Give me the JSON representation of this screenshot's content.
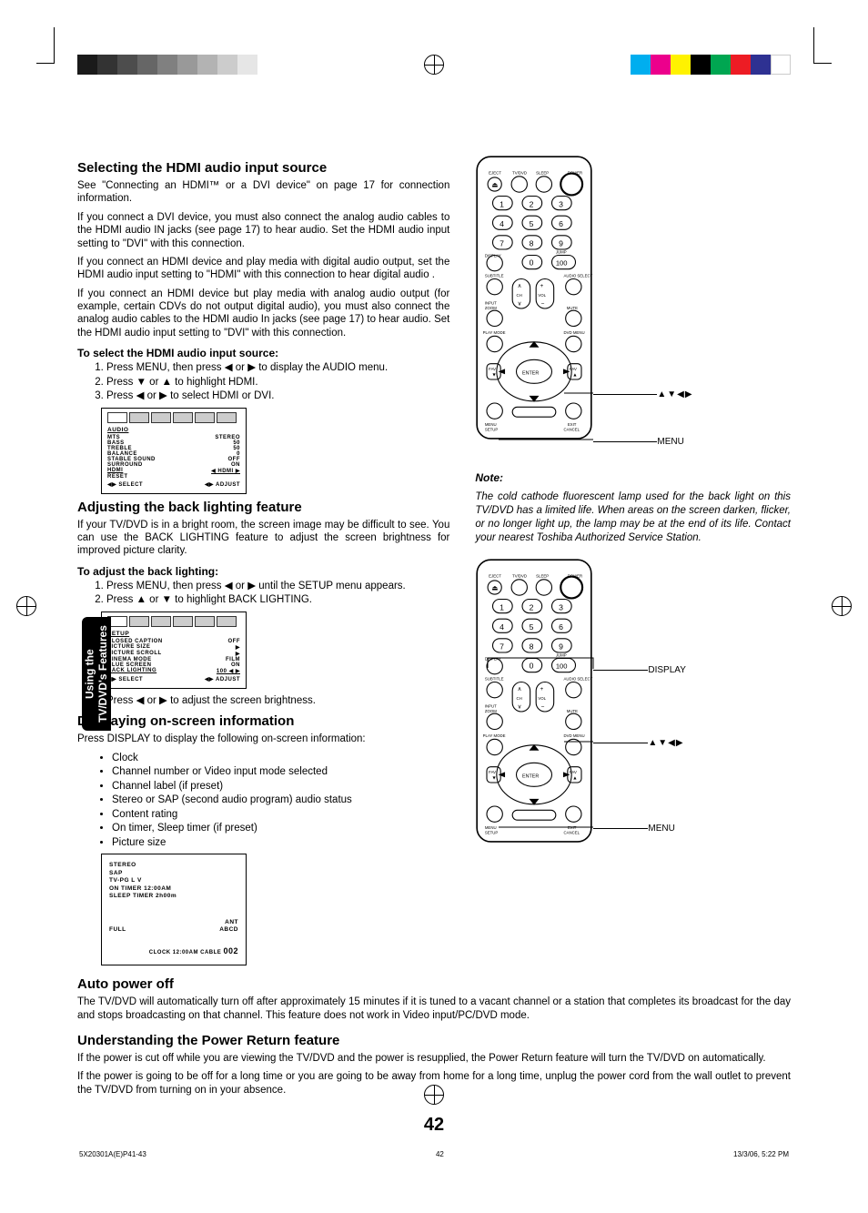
{
  "colorbars": {
    "left": [
      "#1a1a1a",
      "#333333",
      "#4d4d4d",
      "#666666",
      "#808080",
      "#999999",
      "#b3b3b3",
      "#cccccc",
      "#e6e6e6"
    ],
    "right": [
      "#00aeef",
      "#ec008c",
      "#fff200",
      "#000000",
      "#00a651",
      "#ed1c24",
      "#2e3192",
      "#ffffff"
    ]
  },
  "sidebar": {
    "line1": "Using the",
    "line2": "TV/DVD's Features"
  },
  "sections": {
    "hdmi": {
      "title": "Selecting the HDMI audio input source",
      "p1": "See \"Connecting an HDMI™ or a DVI device\" on page 17 for connection information.",
      "p2": "If you connect a DVI device, you must also connect the analog audio cables to the HDMI audio IN jacks (see page 17) to hear audio. Set the HDMI audio input setting to \"DVI\" with this connection.",
      "p3": "If you connect an HDMI device and play media with digital audio output, set the HDMI audio input setting to \"HDMI\" with this connection to hear digital audio .",
      "p4": "If you connect an HDMI device but play media with analog audio output (for example, certain CDVs do not output digital audio), you must also connect the analog audio cables to the HDMI audio In jacks (see page 17) to hear audio. Set the HDMI audio input setting to \"DVI\" with this connection.",
      "stepsTitle": "To select the HDMI audio input source:",
      "steps": [
        "Press MENU, then press ◀ or ▶ to display the AUDIO menu.",
        "Press ▼ or ▲ to highlight HDMI.",
        "Press ◀ or ▶ to select HDMI or DVI."
      ],
      "menu": {
        "header": "AUDIO",
        "rows": [
          [
            "MTS",
            "STEREO"
          ],
          [
            "BASS",
            "50"
          ],
          [
            "TREBLE",
            "50"
          ],
          [
            "BALANCE",
            "0"
          ],
          [
            "STABLE SOUND",
            "OFF"
          ],
          [
            "SURROUND",
            "ON"
          ],
          [
            "HDMI",
            "◀ HDMI ▶"
          ],
          [
            "RESET",
            ""
          ]
        ],
        "footer": [
          "◀▶ SELECT",
          "◀▶ ADJUST"
        ]
      }
    },
    "backlight": {
      "title": "Adjusting the back lighting feature",
      "p1": "If your TV/DVD is in a bright room, the screen image may be difficult to see. You can use the BACK LIGHTING feature to adjust the screen brightness for improved picture clarity.",
      "stepsTitle": "To adjust the back lighting:",
      "steps": [
        "Press MENU, then press ◀ or ▶ until the SETUP menu appears.",
        "Press ▲ or ▼ to highlight BACK LIGHTING."
      ],
      "menu": {
        "header": "SETUP",
        "rows": [
          [
            "CLOSED CAPTION",
            "OFF"
          ],
          [
            "",
            ""
          ],
          [
            "PICTURE SIZE",
            "▶"
          ],
          [
            "PICTURE SCROLL",
            "▶"
          ],
          [
            "CINEMA MODE",
            "FILM"
          ],
          [
            "BLUE SCREEN",
            "ON"
          ],
          [
            "BACK LIGHTING",
            "100 ◀  ▶"
          ]
        ],
        "footer": [
          "◀▶ SELECT",
          "◀▶ ADJUST"
        ]
      },
      "step3": "Press ◀ or ▶ to adjust the screen brightness."
    },
    "display": {
      "title": "Displaying on-screen information",
      "p1": "Press DISPLAY to display the following on-screen information:",
      "items": [
        "Clock",
        "Channel number or Video input mode selected",
        "Channel label (if preset)",
        "Stereo or SAP (second audio program) audio status",
        "Content rating",
        "On timer, Sleep timer (if preset)",
        "Picture size"
      ],
      "info": {
        "lines": [
          "STEREO",
          "SAP",
          "TV-PG    L  V",
          "ON TIMER    12:00AM",
          "SLEEP TIMER 2h00m"
        ],
        "ant": "ANT",
        "label": "ABCD",
        "bottom": "CLOCK 12:00AM  CABLE  002"
      }
    },
    "auto": {
      "title": "Auto power off",
      "p1": "The TV/DVD will automatically turn off after approximately 15 minutes if it is tuned to a vacant channel or a station that completes its broadcast for the day and stops broadcasting on that channel. This feature does not work in Video input/PC/DVD mode."
    },
    "power": {
      "title": "Understanding the Power Return feature",
      "p1": "If the power is cut off while you are viewing the TV/DVD and the power is resupplied, the Power Return feature will turn the TV/DVD on automatically.",
      "p2": "If the power is going to be off for a long time or you are going to be away from home for a long time, unplug the power cord from the wall outlet to prevent the TV/DVD from turning on in your absence."
    },
    "note": {
      "title": "Note:",
      "body": "The cold cathode fluorescent lamp used for the back light on this TV/DVD has a limited life. When areas on the screen darken, flicker, or no longer light up, the lamp may be at the end of its life. Contact your nearest Toshiba Authorized Service Station."
    }
  },
  "callouts": {
    "arrows": "▲▼◀▶",
    "menu": "MENU",
    "display": "DISPLAY"
  },
  "page_number": "42",
  "footer": {
    "file": "5X20301A(E)P41-43",
    "page": "42",
    "date": "13/3/06, 5:22 PM"
  }
}
